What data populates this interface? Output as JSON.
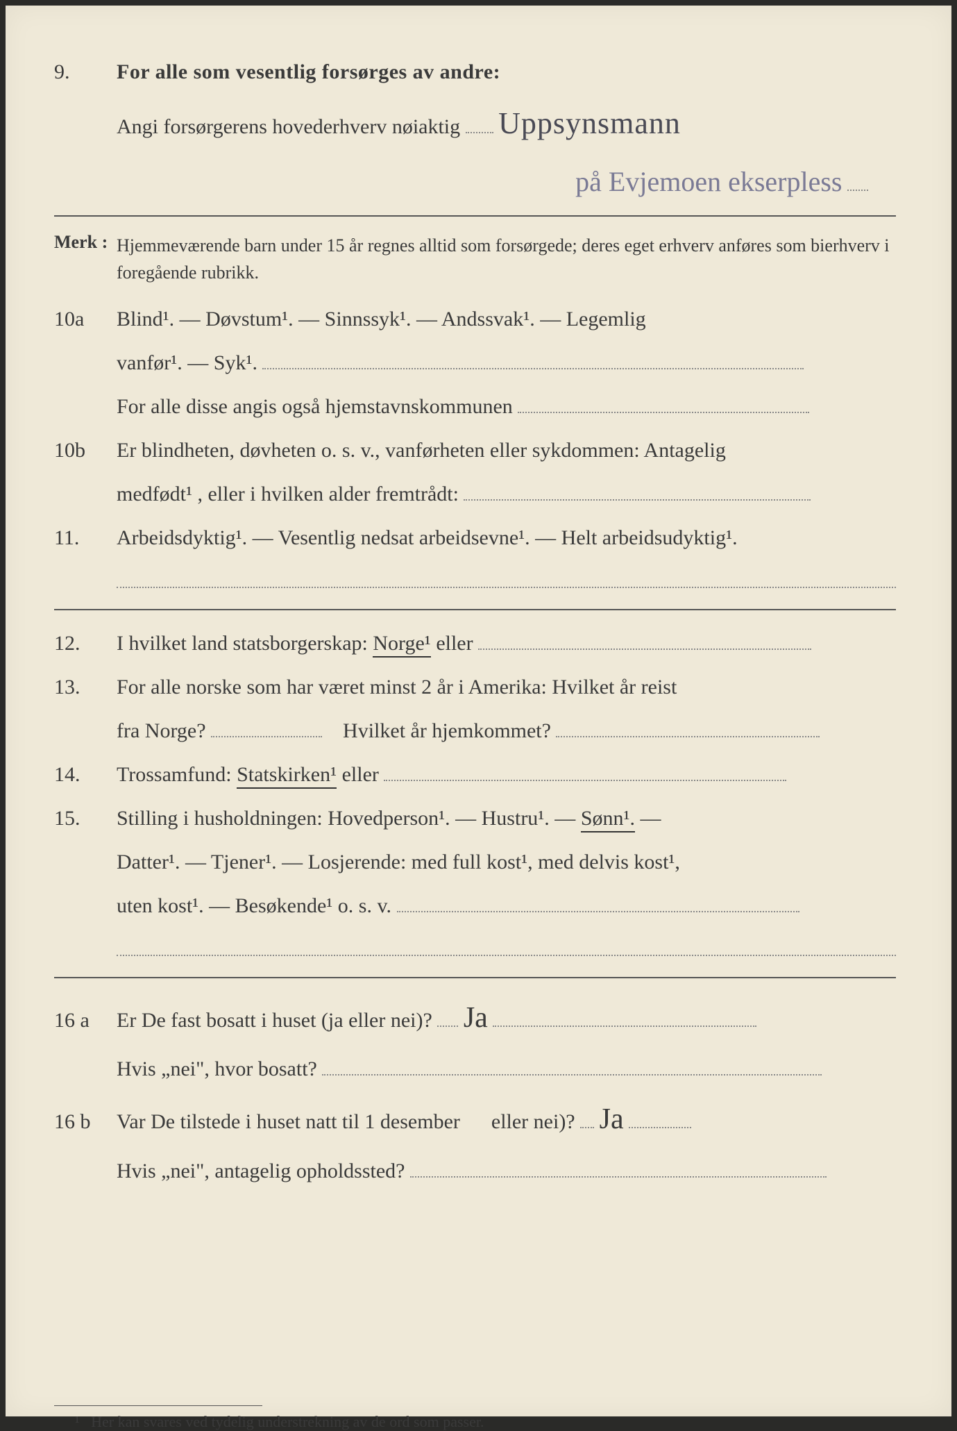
{
  "q9": {
    "num": "9.",
    "line1": "For alle som vesentlig forsørges av andre:",
    "line2_label": "Angi forsørgerens hovederhverv nøiaktig",
    "handwritten1": "Uppsynsmann",
    "handwritten2": "på Evjemoen ekserpless"
  },
  "merk": {
    "label": "Merk :",
    "text": "Hjemmeværende barn under 15 år regnes alltid som forsørgede; deres eget erhverv anføres som bierhverv i foregående rubrikk."
  },
  "q10a": {
    "num": "10a",
    "opts1": "Blind¹.  —  Døvstum¹.  —  Sinnssyk¹.  —  Andssvak¹.  —  Legemlig",
    "opts2": "vanfør¹. — Syk¹.",
    "line3": "For alle disse angis også hjemstavnskommunen"
  },
  "q10b": {
    "num": "10b",
    "text1": "Er blindheten, døvheten o. s. v., vanførheten eller sykdommen: Antagelig",
    "text2": "medfødt¹ , eller i hvilken alder fremtrådt:"
  },
  "q11": {
    "num": "11.",
    "text": "Arbeidsdyktig¹. — Vesentlig nedsat arbeidsevne¹. — Helt arbeidsudyktig¹."
  },
  "q12": {
    "num": "12.",
    "text_a": "I hvilket land statsborgerskap:  ",
    "norge": "Norge¹",
    "text_b": " eller"
  },
  "q13": {
    "num": "13.",
    "text1": "For alle norske som har været minst 2 år i Amerika:  Hvilket år reist",
    "text2a": "fra Norge?",
    "text2b": "Hvilket år hjemkommet?"
  },
  "q14": {
    "num": "14.",
    "text_a": "Trossamfund:  ",
    "statskirken": "Statskirken¹",
    "text_b": " eller"
  },
  "q15": {
    "num": "15.",
    "text1a": "Stilling i husholdningen:  Hovedperson¹.  —  Hustru¹.  —  ",
    "sonn": "Sønn¹.",
    "text1b": "  —",
    "text2": "Datter¹.  —  Tjener¹.  —  Losjerende:  med  full  kost¹,  med delvis kost¹,",
    "text3": "uten kost¹. — Besøkende¹ o. s. v."
  },
  "q16a": {
    "num": "16 a",
    "text1": "Er De fast bosatt i huset (ja eller nei)?",
    "hw": "Ja",
    "text2": "Hvis „nei\", hvor bosatt?"
  },
  "q16b": {
    "num": "16 b",
    "text1a": "Var De tilstede i huset natt til 1 desember",
    "text1b": "eller nei)?",
    "hw": "Ja",
    "text2": "Hvis „nei\", antagelig opholdssted?"
  },
  "footnote": {
    "marker": "¹",
    "text": "Her kan svares ved tydelig understrekning av de ord som passer."
  }
}
